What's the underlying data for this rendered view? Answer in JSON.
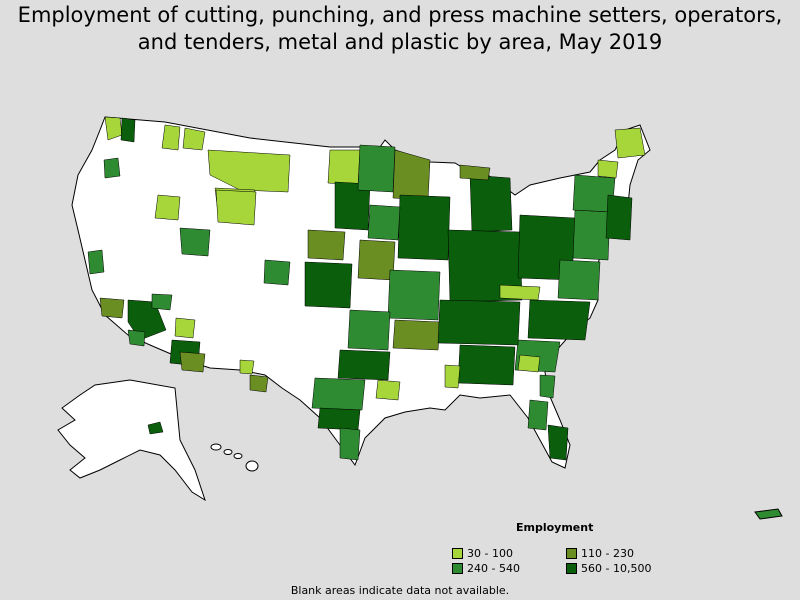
{
  "title": {
    "line1": "Employment of cutting, punching, and press machine setters, operators,",
    "line2": "and tenders, metal and plastic by area, May 2019"
  },
  "legend": {
    "title": "Employment",
    "items": [
      {
        "label": "30 - 100",
        "color": "#a6d63a"
      },
      {
        "label": "110 - 230",
        "color": "#6b8e23"
      },
      {
        "label": "240 - 540",
        "color": "#2e8b32"
      },
      {
        "label": "560 - 10,500",
        "color": "#0b5e0b"
      }
    ]
  },
  "footnote": "Blank areas indicate data not available.",
  "colors": {
    "background": "#dedede",
    "blank": "#ffffff",
    "border": "#000000"
  }
}
